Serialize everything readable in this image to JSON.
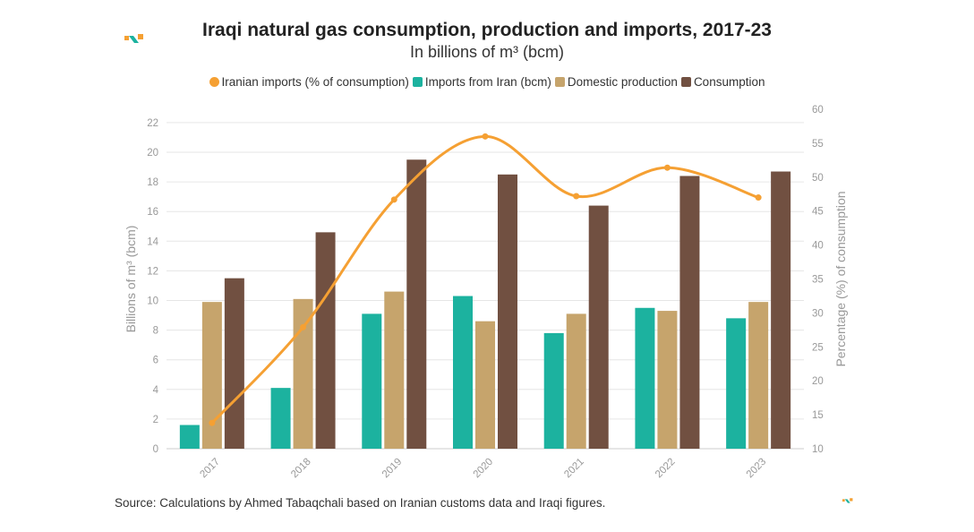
{
  "colors": {
    "imports_pct": "#f5a033",
    "imports": "#1cb29f",
    "domestic": "#c6a46c",
    "consumption": "#715041",
    "logo_orange": "#f5a033",
    "logo_teal": "#1cb29f"
  },
  "logo": {
    "icon": "brand-logo-icon"
  },
  "source": "Source: Calculations by Ahmed Tabaqchali based on Iranian customs data and Iraqi figures.",
  "chart_data": {
    "type": "bar",
    "title": "Iraqi natural gas consumption, production and imports, 2017-23",
    "subtitle": "In billions of m³ (bcm)",
    "categories": [
      "2017",
      "2018",
      "2019",
      "2020",
      "2021",
      "2022",
      "2023"
    ],
    "series": [
      {
        "name": "Iranian imports (% of consumption)",
        "type": "line",
        "axis": "right",
        "values": [
          13.8,
          27.9,
          46.7,
          56.0,
          47.2,
          51.4,
          47.0
        ]
      },
      {
        "name": "Imports from Iran (bcm)",
        "type": "bar",
        "axis": "left",
        "values": [
          1.6,
          4.1,
          9.1,
          10.3,
          7.8,
          9.5,
          8.8
        ]
      },
      {
        "name": "Domestic production",
        "type": "bar",
        "axis": "left",
        "values": [
          9.9,
          10.1,
          10.6,
          8.6,
          9.1,
          9.3,
          9.9
        ]
      },
      {
        "name": "Consumption",
        "type": "bar",
        "axis": "left",
        "values": [
          11.5,
          14.6,
          19.5,
          18.5,
          16.4,
          18.4,
          18.7
        ]
      }
    ],
    "ylabel": "Billions of m³ (bcm)",
    "y2label": "Percentage (%) of consumption",
    "ylim": [
      0,
      22.9
    ],
    "y2lim": [
      10,
      60
    ],
    "yticks": [
      "0",
      "2",
      "4",
      "6",
      "8",
      "10",
      "12",
      "14",
      "16",
      "18",
      "20",
      "22"
    ],
    "y2ticks": [
      "10",
      "15",
      "20",
      "25",
      "30",
      "35",
      "40",
      "45",
      "50",
      "55",
      "60"
    ],
    "legend": "top",
    "grid": true
  }
}
